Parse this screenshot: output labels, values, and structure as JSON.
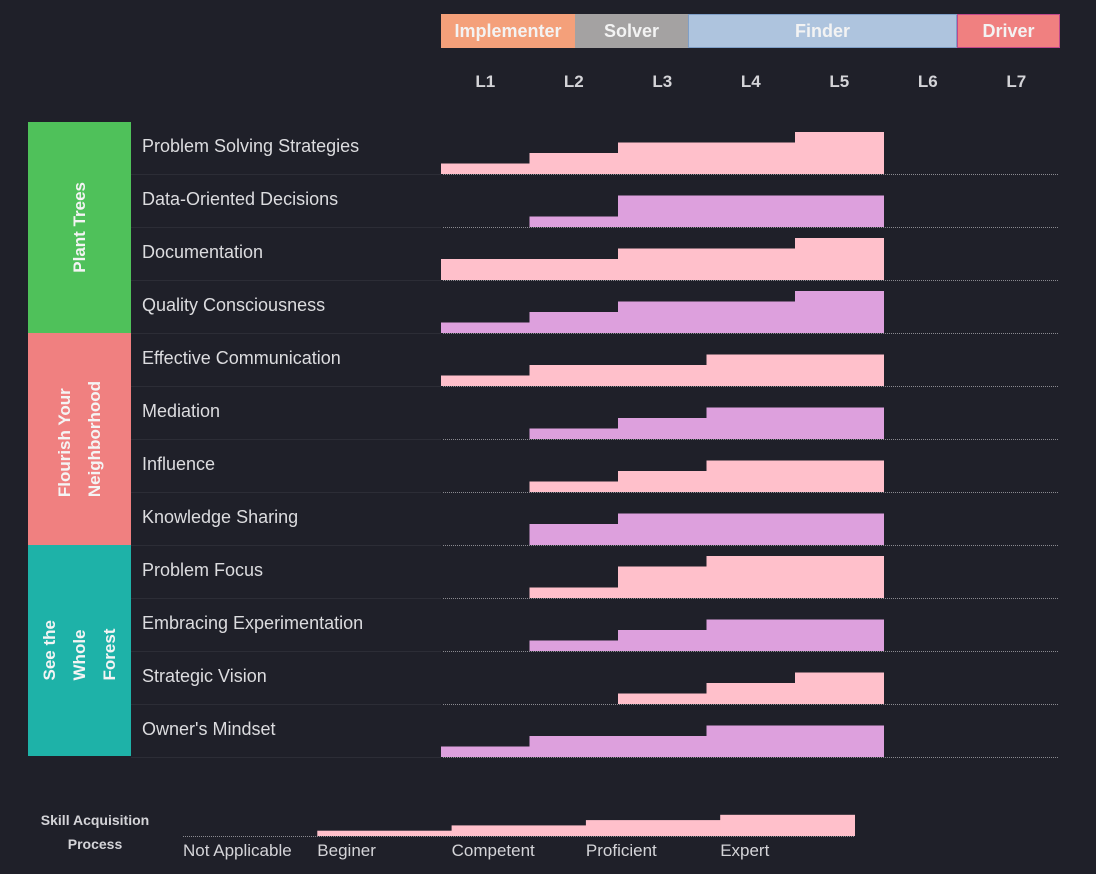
{
  "roles": [
    {
      "name": "Implementer",
      "color": "#f4a07a",
      "border": "#f4a07a"
    },
    {
      "name": "Solver",
      "color": "#a4a2a2",
      "border": "#a4a2a2"
    },
    {
      "name": "Finder",
      "color": "#aec4de",
      "border": "#7f9fc7"
    },
    {
      "name": "Driver",
      "color": "#f08080",
      "border": "#c0488a"
    }
  ],
  "levels": [
    "L1",
    "L2",
    "L3",
    "L4",
    "L5",
    "L6",
    "L7"
  ],
  "colors": {
    "pink": "#ffc0cb",
    "plum": "#dda0dd",
    "bg": "#1f2029"
  },
  "groups": [
    {
      "name": "Plant Trees",
      "color": "#4fc15a"
    },
    {
      "name": "Flourish Your\nNeighborhood",
      "color": "#f08080"
    },
    {
      "name": "See the\nWhole\nForest",
      "color": "#1eb2a8"
    }
  ],
  "chart_data": {
    "type": "bar",
    "categories": [
      "L1",
      "L2",
      "L3",
      "L4",
      "L5",
      "L6",
      "L7"
    ],
    "scale": [
      "Not Applicable",
      "Beginer",
      "Competent",
      "Proficient",
      "Expert"
    ],
    "series": [
      {
        "name": "Problem Solving Strategies",
        "values": [
          1,
          2,
          3,
          3,
          4,
          0,
          0
        ]
      },
      {
        "name": "Data-Oriented Decisions",
        "values": [
          0,
          1,
          3,
          3,
          3,
          0,
          0
        ]
      },
      {
        "name": "Documentation",
        "values": [
          2,
          2,
          3,
          3,
          4,
          0,
          0
        ]
      },
      {
        "name": "Quality Consciousness",
        "values": [
          1,
          2,
          3,
          3,
          4,
          0,
          0
        ]
      },
      {
        "name": "Effective Communication",
        "values": [
          1,
          2,
          2,
          3,
          3,
          0,
          0
        ]
      },
      {
        "name": "Mediation",
        "values": [
          0,
          1,
          2,
          3,
          3,
          0,
          0
        ]
      },
      {
        "name": "Influence",
        "values": [
          0,
          1,
          2,
          3,
          3,
          0,
          0
        ]
      },
      {
        "name": "Knowledge Sharing",
        "values": [
          0,
          2,
          3,
          3,
          3,
          0,
          0
        ]
      },
      {
        "name": "Problem Focus",
        "values": [
          0,
          1,
          3,
          4,
          4,
          0,
          0
        ]
      },
      {
        "name": "Embracing Experimentation",
        "values": [
          0,
          1,
          2,
          3,
          3,
          0,
          0
        ]
      },
      {
        "name": "Strategic Vision",
        "values": [
          0,
          0,
          1,
          2,
          3,
          0,
          0
        ]
      },
      {
        "name": "Owner's Mindset",
        "values": [
          1,
          2,
          2,
          3,
          3,
          0,
          0
        ]
      }
    ]
  },
  "legend": {
    "title": "Skill Acquisition\nProcess",
    "labels": [
      "Not Applicable",
      "Beginer",
      "Competent",
      "Proficient",
      "Expert"
    ]
  }
}
